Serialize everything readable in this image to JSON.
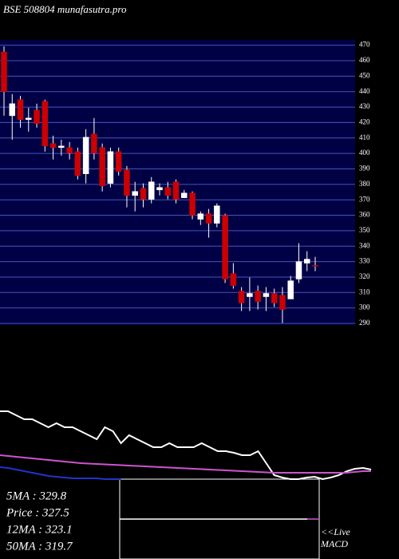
{
  "chart_data": {
    "type": "candlestick",
    "title": "BSE 508804 munafasutra.pro",
    "ylim": [
      290,
      475
    ],
    "yticks": [
      290,
      300,
      310,
      320,
      330,
      340,
      350,
      360,
      370,
      380,
      390,
      400,
      410,
      420,
      430,
      440,
      450,
      460,
      470
    ],
    "grid": true,
    "up_color": "#ffffff",
    "down_color": "#cc0000",
    "open": [
      465.7,
      424.4,
      434.8,
      421.9,
      428.0,
      433.7,
      406.4,
      403.8,
      403.8,
      401.2,
      386.8,
      412.6,
      403.8,
      380.6,
      401.2,
      389.3,
      372.8,
      377.5,
      370.3,
      376.4,
      378.0,
      381.6,
      371.3,
      374.4,
      357.4,
      361.0,
      354.8,
      359.9,
      322.3,
      310.9,
      307.3,
      310.9,
      307.3,
      309.4,
      308.3,
      305.8,
      318.7,
      329.0,
      327.6
    ],
    "close": [
      439.9,
      432.2,
      421.9,
      422.9,
      419.3,
      404.8,
      403.8,
      404.8,
      400.2,
      385.7,
      410.5,
      400.2,
      379.0,
      401.2,
      388.3,
      372.8,
      375.4,
      370.3,
      381.6,
      378.0,
      372.8,
      370.3,
      374.4,
      360.0,
      361.0,
      354.8,
      366.1,
      318.7,
      314.5,
      303.2,
      309.4,
      304.2,
      309.4,
      303.2,
      299.0,
      317.6,
      330.0,
      331.6,
      327.5
    ],
    "high": [
      469.3,
      438.4,
      437.3,
      429.6,
      432.2,
      434.8,
      411.5,
      408.9,
      407.4,
      403.8,
      415.7,
      422.9,
      406.4,
      403.8,
      403.8,
      391.9,
      381.6,
      380.6,
      384.7,
      380.6,
      381.6,
      383.2,
      376.4,
      375.4,
      362.5,
      364.1,
      367.7,
      361.0,
      329.0,
      313.5,
      319.7,
      314.5,
      313.5,
      312.5,
      313.5,
      320.7,
      341.9,
      336.7,
      333.1
    ],
    "low": [
      424.4,
      408.9,
      416.7,
      414.1,
      416.7,
      401.2,
      396.1,
      398.6,
      396.1,
      383.2,
      380.6,
      396.1,
      375.4,
      378.0,
      385.7,
      365.1,
      362.5,
      365.1,
      367.7,
      372.8,
      370.3,
      367.7,
      371.3,
      357.4,
      353.7,
      345.5,
      352.2,
      316.1,
      312.5,
      298.0,
      298.0,
      299.0,
      298.0,
      300.6,
      290.3,
      305.8,
      316.1,
      323.8,
      323.8
    ],
    "indicator": {
      "ylim": [
        0,
        100
      ],
      "series": [
        {
          "color": "#ffffff",
          "values": [
            85,
            85,
            80,
            75,
            75,
            70,
            65,
            70,
            65,
            65,
            60,
            55,
            50,
            65,
            60,
            45,
            55,
            50,
            45,
            40,
            40,
            45,
            40,
            40,
            40,
            45,
            40,
            35,
            35,
            33,
            30,
            30,
            35,
            20,
            5,
            2,
            0,
            0,
            2,
            3,
            0,
            2,
            5,
            10,
            13,
            14,
            12
          ]
        },
        {
          "color": "#cc55cc",
          "values": [
            30,
            29,
            28,
            27,
            26,
            25,
            24,
            23,
            22,
            21,
            20,
            19.5,
            19,
            18.5,
            18,
            17.5,
            17,
            16.5,
            16,
            15.5,
            15,
            14.5,
            14,
            13.5,
            13,
            12.5,
            12,
            11.5,
            11,
            10.5,
            10,
            9.5,
            9,
            8.5,
            8,
            8,
            8,
            8,
            8,
            8,
            8,
            8,
            8,
            8,
            9,
            10,
            10
          ]
        },
        {
          "color": "#2233cc",
          "values": [
            15,
            14,
            12,
            10,
            8,
            6,
            4,
            3,
            2,
            1,
            1,
            1,
            1,
            0,
            0,
            0
          ]
        }
      ]
    },
    "stats": [
      "5MA : 329.8",
      "Price : 327.5",
      "12MA : 323.1",
      "50MA : 319.7"
    ],
    "macd_label": [
      "<<Live",
      "MACD"
    ]
  }
}
